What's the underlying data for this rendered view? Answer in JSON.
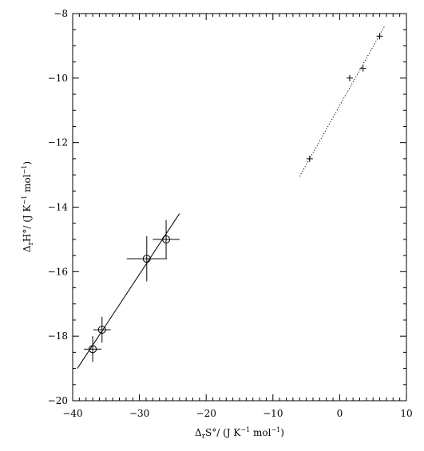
{
  "chart_data": {
    "type": "scatter",
    "title": "",
    "xlim": [
      -40,
      10
    ],
    "ylim": [
      -20,
      -8
    ],
    "xticks": [
      -40,
      -30,
      -20,
      -10,
      0,
      10
    ],
    "yticks": [
      -20,
      -18,
      -16,
      -14,
      -12,
      -10,
      -8
    ],
    "xtick_labels": [
      "−40",
      "−30",
      "−20",
      "−10",
      "0",
      "10"
    ],
    "ytick_labels": [
      "−20",
      "−18",
      "−16",
      "−14",
      "−12",
      "−10",
      "−8"
    ],
    "xlabel": {
      "prefix": "Δ",
      "sub": "r",
      "main": "S°/ (J K",
      "sup": "−1",
      "suffix": " mol",
      "sup2": "−1",
      "end": ")"
    },
    "ylabel": {
      "prefix": "Δ",
      "sub": "r",
      "main": "H°/ (J K",
      "sup": "−1",
      "suffix": " mol",
      "sup2": "−1",
      "end": ")"
    },
    "grid": false,
    "series": [
      {
        "marker": "circle",
        "line": "solid",
        "points": [
          {
            "x": -37.0,
            "y": -18.4,
            "xerr": 1.3,
            "yerr": 0.4
          },
          {
            "x": -35.6,
            "y": -17.8,
            "xerr": 1.3,
            "yerr": 0.4
          },
          {
            "x": -28.9,
            "y": -15.6,
            "xerr": 3.0,
            "yerr": 0.7
          },
          {
            "x": -26.0,
            "y": -15.0,
            "xerr": 2.0,
            "yerr": 0.6
          }
        ],
        "fit": {
          "x1": -39.3,
          "y1": -19.0,
          "x2": -24.0,
          "y2": -14.2
        }
      },
      {
        "marker": "plus",
        "line": "dotted",
        "points": [
          {
            "x": -4.5,
            "y": -12.5
          },
          {
            "x": 1.5,
            "y": -10.0
          },
          {
            "x": 3.5,
            "y": -9.7
          },
          {
            "x": 6.0,
            "y": -8.7
          }
        ],
        "fit": {
          "x1": -6.0,
          "y1": -13.05,
          "x2": 6.7,
          "y2": -8.4
        }
      }
    ]
  }
}
